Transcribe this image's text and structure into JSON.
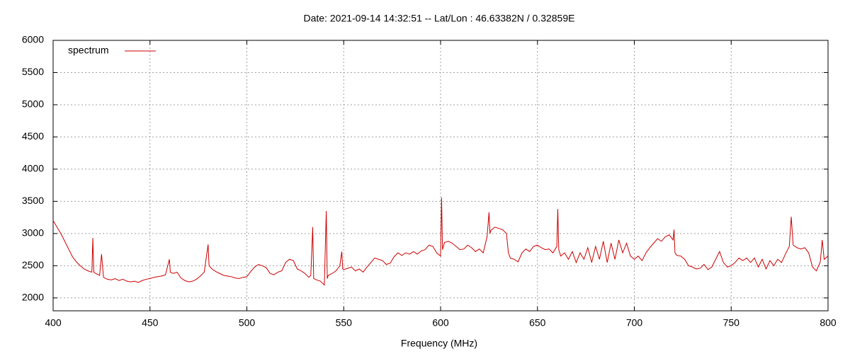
{
  "chart_data": {
    "type": "line",
    "title": "Date: 2021-09-14 14:32:51  --  Lat/Lon : 46.63382N / 0.32859E",
    "xlabel": "Frequency (MHz)",
    "x": [
      400,
      402,
      404,
      406,
      408,
      410,
      412,
      414,
      416,
      418,
      420,
      420.5,
      421,
      422,
      424,
      425,
      426,
      428,
      430,
      432,
      434,
      436,
      438,
      440,
      442,
      444,
      446,
      448,
      450,
      452,
      454,
      456,
      458,
      460,
      460.5,
      462,
      464,
      466,
      468,
      470,
      472,
      474,
      476,
      478,
      480,
      480.5,
      482,
      484,
      486,
      488,
      490,
      492,
      494,
      496,
      498,
      500,
      502,
      504,
      506,
      508,
      510,
      512,
      514,
      516,
      518,
      520,
      522,
      524,
      526,
      528,
      530,
      532,
      533,
      534,
      534.5,
      536,
      538,
      540,
      541,
      541.5,
      542,
      544,
      546,
      548,
      549,
      549.5,
      550,
      552,
      554,
      556,
      558,
      560,
      562,
      564,
      566,
      568,
      570,
      572,
      574,
      576,
      578,
      580,
      582,
      584,
      586,
      588,
      590,
      592,
      594,
      596,
      598,
      600,
      600.5,
      601,
      602,
      604,
      606,
      608,
      610,
      612,
      614,
      616,
      618,
      620,
      622,
      624,
      625,
      625.5,
      626,
      628,
      630,
      632,
      634,
      635,
      636,
      638,
      640,
      642,
      644,
      646,
      648,
      650,
      652,
      654,
      656,
      658,
      660,
      660.5,
      661,
      662,
      664,
      666,
      668,
      670,
      672,
      674,
      676,
      678,
      680,
      682,
      684,
      686,
      688,
      690,
      692,
      694,
      696,
      698,
      700,
      702,
      704,
      706,
      708,
      710,
      712,
      714,
      716,
      718,
      720,
      720.5,
      721,
      722,
      724,
      726,
      728,
      730,
      732,
      734,
      736,
      738,
      740,
      742,
      744,
      746,
      748,
      750,
      752,
      754,
      756,
      758,
      760,
      762,
      764,
      766,
      768,
      770,
      772,
      774,
      776,
      778,
      780,
      781,
      782,
      784,
      786,
      788,
      790,
      792,
      794,
      796,
      797,
      798,
      800
    ],
    "series": [
      {
        "name": "spectrum",
        "color": "#cc0000",
        "values": [
          3200,
          3100,
          3000,
          2880,
          2760,
          2640,
          2560,
          2500,
          2450,
          2420,
          2400,
          2930,
          2400,
          2380,
          2350,
          2680,
          2320,
          2290,
          2280,
          2300,
          2270,
          2290,
          2260,
          2250,
          2260,
          2240,
          2270,
          2290,
          2300,
          2320,
          2330,
          2340,
          2360,
          2600,
          2400,
          2380,
          2400,
          2310,
          2270,
          2250,
          2260,
          2290,
          2340,
          2400,
          2830,
          2500,
          2450,
          2410,
          2380,
          2350,
          2340,
          2330,
          2310,
          2300,
          2320,
          2330,
          2410,
          2480,
          2520,
          2500,
          2470,
          2380,
          2360,
          2400,
          2420,
          2550,
          2600,
          2580,
          2450,
          2420,
          2380,
          2320,
          2350,
          3100,
          2300,
          2280,
          2260,
          2200,
          3350,
          2300,
          2350,
          2380,
          2420,
          2500,
          2720,
          2450,
          2440,
          2460,
          2480,
          2420,
          2450,
          2400,
          2480,
          2550,
          2620,
          2600,
          2580,
          2520,
          2540,
          2640,
          2700,
          2660,
          2700,
          2680,
          2720,
          2680,
          2730,
          2750,
          2820,
          2800,
          2700,
          2650,
          3560,
          2750,
          2860,
          2880,
          2850,
          2800,
          2750,
          2760,
          2820,
          2780,
          2720,
          2760,
          2700,
          2950,
          3330,
          3000,
          3050,
          3100,
          3080,
          3060,
          3000,
          2700,
          2620,
          2600,
          2560,
          2700,
          2760,
          2720,
          2800,
          2820,
          2780,
          2750,
          2760,
          2700,
          2800,
          3380,
          2750,
          2650,
          2700,
          2600,
          2720,
          2550,
          2700,
          2600,
          2780,
          2550,
          2800,
          2600,
          2880,
          2550,
          2850,
          2600,
          2900,
          2700,
          2850,
          2650,
          2600,
          2650,
          2580,
          2700,
          2780,
          2850,
          2920,
          2880,
          2950,
          2980,
          2900,
          3060,
          2700,
          2660,
          2650,
          2600,
          2500,
          2480,
          2450,
          2460,
          2520,
          2440,
          2480,
          2600,
          2720,
          2550,
          2480,
          2500,
          2550,
          2620,
          2580,
          2620,
          2550,
          2620,
          2480,
          2600,
          2450,
          2580,
          2500,
          2600,
          2550,
          2680,
          2800,
          3260,
          2820,
          2780,
          2760,
          2780,
          2700,
          2480,
          2420,
          2560,
          2900,
          2600,
          2650
        ]
      }
    ],
    "xlim": [
      400,
      800
    ],
    "xticks": [
      400,
      450,
      500,
      550,
      600,
      650,
      700,
      750,
      800
    ],
    "ylim": [
      1800,
      6000
    ],
    "yticks": [
      2000,
      2500,
      3000,
      3500,
      4000,
      4500,
      5000,
      5500,
      6000
    ],
    "grid": true,
    "legend": "top-left"
  }
}
